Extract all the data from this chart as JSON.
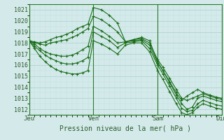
{
  "title": "",
  "xlabel": "Pression niveau de la mer( hPa )",
  "ylim": [
    1011.5,
    1021.5
  ],
  "yticks": [
    1012,
    1013,
    1014,
    1015,
    1016,
    1017,
    1018,
    1019,
    1020,
    1021
  ],
  "days": [
    "Jeu",
    "Ven",
    "Sam",
    "Dim"
  ],
  "day_positions": [
    0,
    96,
    192,
    288
  ],
  "xlim": [
    0,
    288
  ],
  "bg_color": "#d4eaea",
  "grid_color_major": "#aacccc",
  "grid_color_minor": "#c0dcdc",
  "line_color": "#1a6e1a",
  "lines": [
    {
      "x": [
        0,
        8,
        16,
        24,
        32,
        40,
        48,
        56,
        64,
        72,
        80,
        88,
        96,
        108,
        120,
        132,
        144,
        156,
        168,
        180,
        192,
        200,
        210,
        220,
        228,
        236,
        244,
        252,
        260,
        270,
        280,
        288
      ],
      "y": [
        1018.2,
        1018.1,
        1018.0,
        1018.1,
        1018.3,
        1018.5,
        1018.6,
        1018.8,
        1019.0,
        1019.3,
        1019.5,
        1019.7,
        1021.2,
        1021.0,
        1020.5,
        1019.8,
        1018.1,
        1018.3,
        1018.5,
        1018.2,
        1016.3,
        1015.5,
        1014.5,
        1013.5,
        1012.8,
        1013.2,
        1013.5,
        1013.8,
        1013.5,
        1013.3,
        1013.1,
        1013.0
      ]
    },
    {
      "x": [
        0,
        8,
        16,
        24,
        32,
        40,
        48,
        56,
        64,
        72,
        80,
        88,
        96,
        108,
        120,
        132,
        144,
        156,
        168,
        180,
        192,
        200,
        210,
        220,
        228,
        236,
        244,
        252,
        260,
        270,
        280,
        288
      ],
      "y": [
        1018.2,
        1018.0,
        1017.9,
        1017.8,
        1018.0,
        1018.1,
        1018.2,
        1018.3,
        1018.5,
        1018.7,
        1019.0,
        1019.3,
        1020.4,
        1020.1,
        1019.6,
        1019.0,
        1018.1,
        1018.3,
        1018.4,
        1018.0,
        1016.5,
        1015.8,
        1014.8,
        1013.8,
        1013.0,
        1012.8,
        1013.0,
        1013.2,
        1013.4,
        1013.2,
        1013.0,
        1012.9
      ]
    },
    {
      "x": [
        0,
        8,
        16,
        24,
        32,
        40,
        48,
        56,
        64,
        72,
        80,
        88,
        96,
        108,
        120,
        132,
        144,
        156,
        168,
        180,
        192,
        200,
        210,
        220,
        228,
        236,
        244,
        252,
        260,
        270,
        280,
        288
      ],
      "y": [
        1018.2,
        1017.9,
        1017.5,
        1017.2,
        1017.0,
        1016.9,
        1016.8,
        1016.8,
        1016.9,
        1017.1,
        1017.4,
        1017.7,
        1019.5,
        1019.1,
        1018.6,
        1018.0,
        1018.1,
        1018.2,
        1018.3,
        1017.8,
        1016.2,
        1015.5,
        1014.4,
        1013.3,
        1012.5,
        1012.0,
        1012.2,
        1013.0,
        1013.2,
        1013.0,
        1012.8,
        1012.7
      ]
    },
    {
      "x": [
        0,
        8,
        16,
        24,
        32,
        40,
        48,
        56,
        64,
        72,
        80,
        88,
        96,
        108,
        120,
        132,
        144,
        156,
        168,
        180,
        192,
        200,
        210,
        220,
        228,
        236,
        244,
        252,
        260,
        270,
        280,
        288
      ],
      "y": [
        1018.2,
        1017.7,
        1017.3,
        1016.9,
        1016.6,
        1016.4,
        1016.2,
        1016.1,
        1016.1,
        1016.2,
        1016.4,
        1016.7,
        1019.0,
        1018.6,
        1018.2,
        1017.6,
        1018.0,
        1018.1,
        1018.2,
        1017.5,
        1016.0,
        1015.2,
        1014.1,
        1013.0,
        1012.1,
        1011.8,
        1011.9,
        1012.5,
        1012.8,
        1012.6,
        1012.4,
        1012.3
      ]
    },
    {
      "x": [
        0,
        8,
        16,
        24,
        32,
        40,
        48,
        56,
        64,
        72,
        80,
        88,
        96,
        108,
        120,
        132,
        144,
        156,
        168,
        180,
        192,
        200,
        210,
        220,
        228,
        236,
        244,
        252,
        260,
        270,
        280,
        288
      ],
      "y": [
        1018.2,
        1017.5,
        1016.8,
        1016.3,
        1015.9,
        1015.6,
        1015.4,
        1015.3,
        1015.2,
        1015.2,
        1015.3,
        1015.5,
        1018.2,
        1017.9,
        1017.5,
        1017.0,
        1017.8,
        1018.0,
        1018.0,
        1017.2,
        1015.5,
        1014.7,
        1013.6,
        1012.5,
        1011.7,
        1011.5,
        1011.7,
        1012.2,
        1012.5,
        1012.3,
        1012.1,
        1012.0
      ]
    }
  ]
}
